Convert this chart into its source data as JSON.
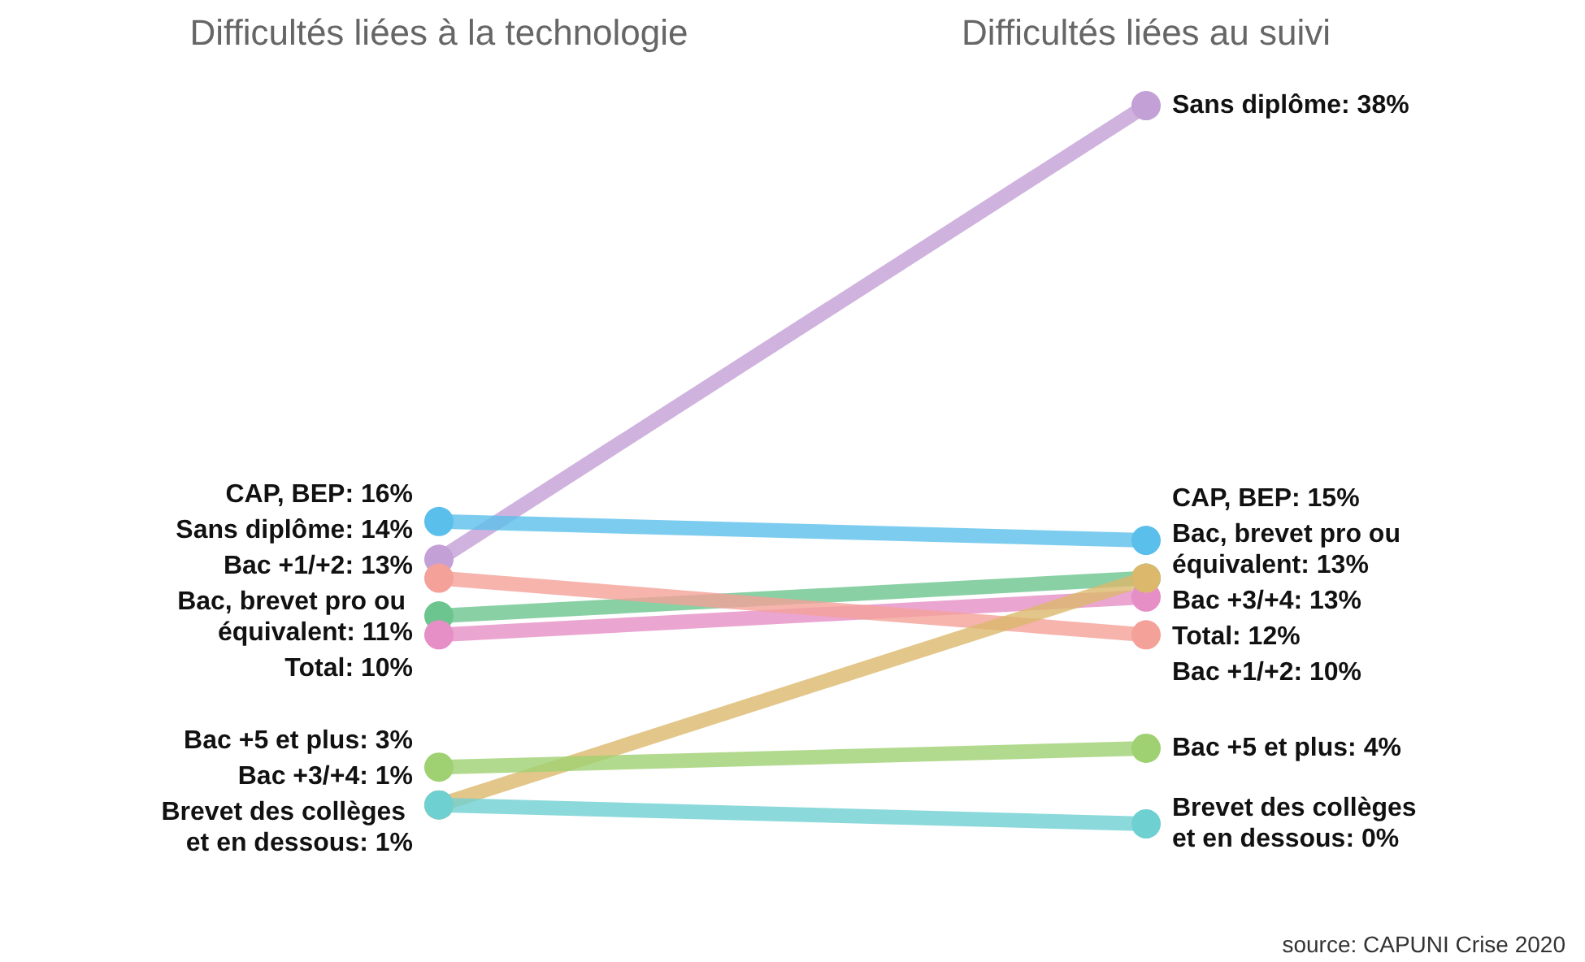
{
  "chart_data": {
    "type": "line",
    "categories": [
      "Difficultés liées à la technologie",
      "Difficultés liées au suivi"
    ],
    "grid": false,
    "marker": "circle",
    "line_style": "solid",
    "tick_labels": "x",
    "series": [
      {
        "color": "#c3a0d6",
        "values": [
          14,
          38
        ],
        "value_labels": [
          "Sans diplôme: 14%",
          "Sans diplôme: 38%"
        ]
      },
      {
        "color": "#5bbfeb",
        "values": [
          16,
          15
        ],
        "value_labels": [
          "CAP, BEP: 16%",
          "CAP, BEP: 15%"
        ]
      },
      {
        "color": "#6cc48e",
        "values": [
          11,
          13
        ],
        "value_labels": [
          "Bac, brevet pro ou équivalent: 11%",
          "Bac, brevet pro ou équivalent: 13%"
        ]
      },
      {
        "color": "#e68fc6",
        "values": [
          10,
          12
        ],
        "value_labels": [
          "Total: 10%",
          "Total: 12%"
        ]
      },
      {
        "color": "#f4a199",
        "values": [
          13,
          10
        ],
        "value_labels": [
          "Bac +1/+2: 13%",
          "Bac +1/+2: 10%"
        ]
      },
      {
        "color": "#dcb86c",
        "values": [
          1,
          13
        ],
        "value_labels": [
          "Bac +3/+4: 1%",
          "Bac +3/+4: 13%"
        ]
      },
      {
        "color": "#9fd172",
        "values": [
          3,
          4
        ],
        "value_labels": [
          "Bac +5 et plus: 3%",
          "Bac +5 et plus: 4%"
        ]
      },
      {
        "color": "#6fd0d2",
        "values": [
          1,
          0
        ],
        "value_labels": [
          "Brevet des collèges et en dessous: 1%",
          "Brevet des collèges et en dessous: 0%"
        ]
      }
    ],
    "annotations": [
      "source: CAPUNI Crise 2020"
    ]
  }
}
